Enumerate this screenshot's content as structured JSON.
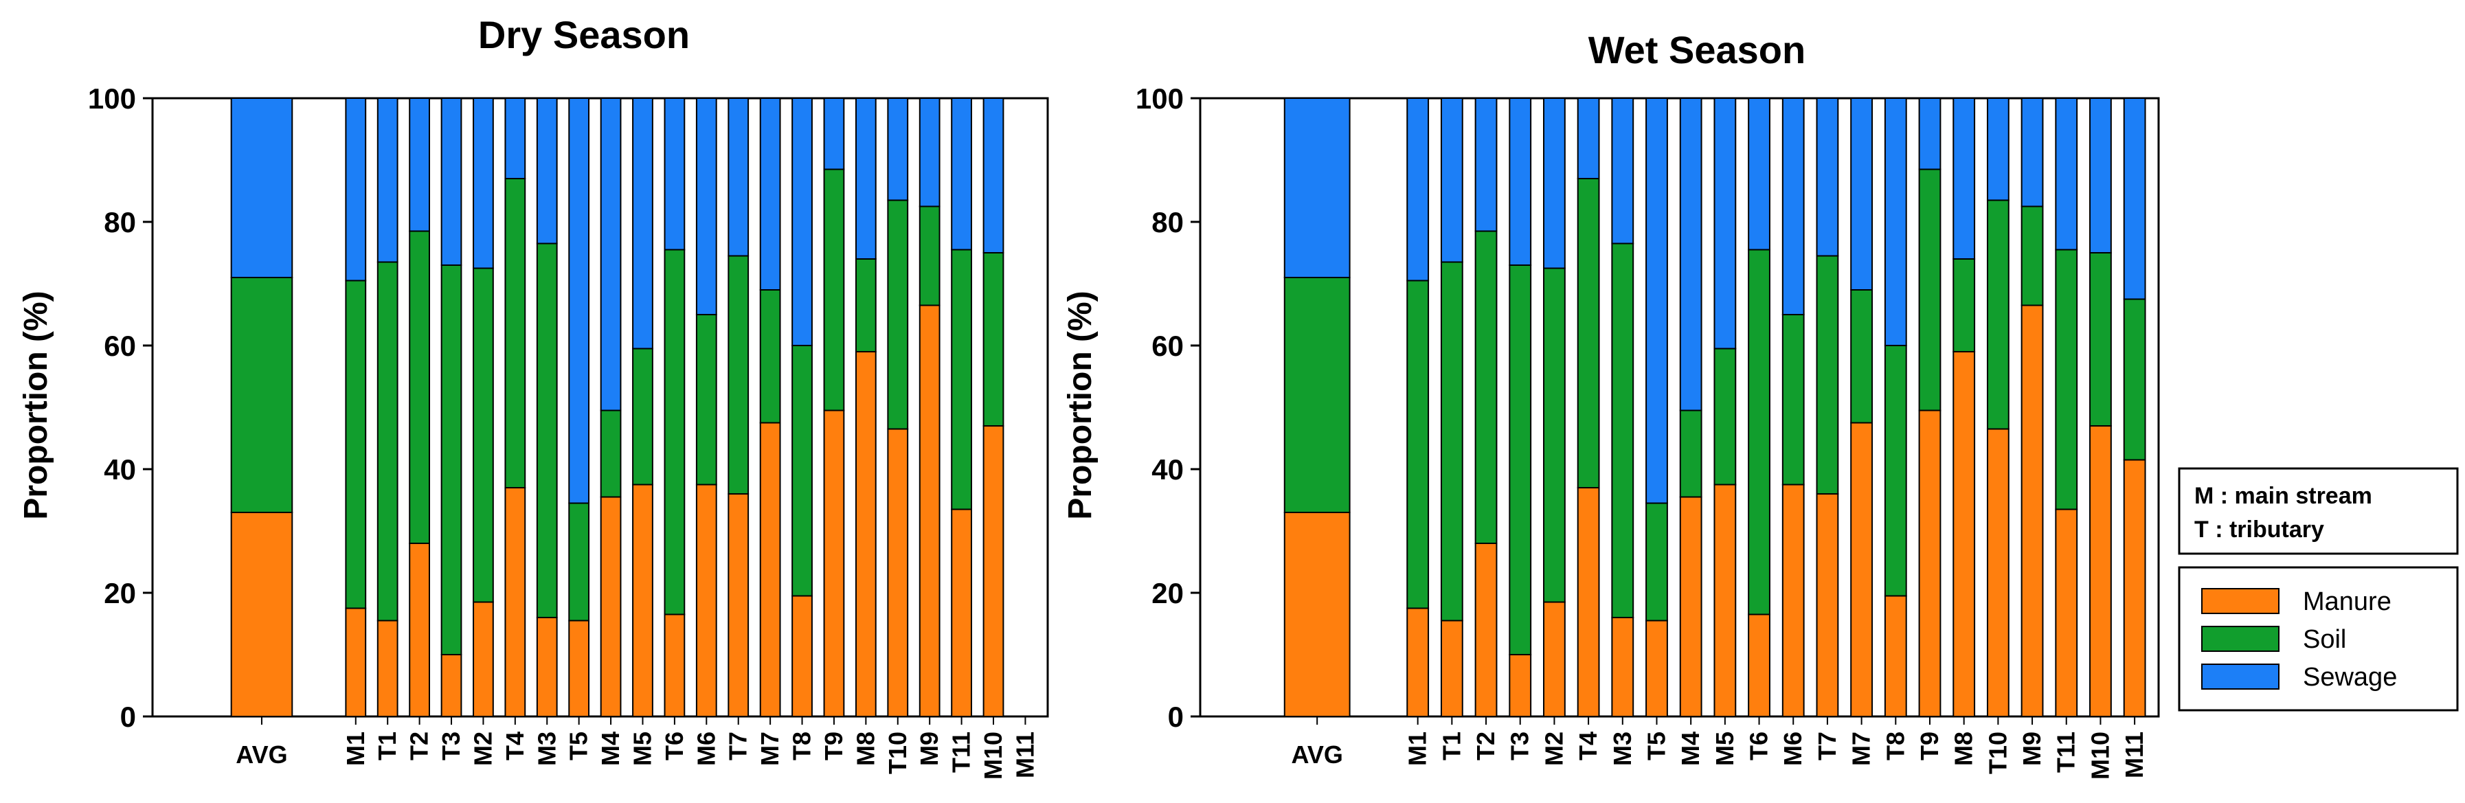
{
  "colors": {
    "manure": "#FF7F0E",
    "soil": "#119E2D",
    "sewage": "#1C7FF7",
    "border": "#000000"
  },
  "legend": {
    "note_lines": [
      "M : main stream",
      "T : tributary"
    ],
    "entries": [
      {
        "label": "Manure",
        "color": "#FF7F0E"
      },
      {
        "label": "Soil",
        "color": "#119E2D"
      },
      {
        "label": "Sewage",
        "color": "#1C7FF7"
      }
    ]
  },
  "chart_data": [
    {
      "type": "bar",
      "stacked": true,
      "title": "Dry Season",
      "ylabel": "Proportion (%)",
      "xlabel": "",
      "ylim": [
        0,
        100
      ],
      "yticks": [
        0,
        20,
        40,
        60,
        80,
        100
      ],
      "categories": [
        "AVG",
        "M1",
        "T1",
        "T2",
        "T3",
        "M2",
        "T4",
        "M3",
        "T5",
        "M4",
        "M5",
        "T6",
        "M6",
        "T7",
        "M7",
        "T8",
        "T9",
        "M8",
        "T10",
        "M9",
        "T11",
        "M10",
        "M11"
      ],
      "series": [
        {
          "name": "Manure",
          "values": [
            33,
            17.5,
            15.5,
            28,
            10,
            18.5,
            37,
            16,
            15.5,
            35.5,
            37.5,
            16.5,
            37.5,
            36,
            47.5,
            19.5,
            49.5,
            59,
            46.5,
            66.5,
            33.5,
            47,
            null
          ]
        },
        {
          "name": "Soil",
          "values": [
            38,
            53,
            58,
            50.5,
            63,
            54,
            50,
            60.5,
            19,
            14,
            22,
            59,
            27.5,
            38.5,
            21.5,
            40.5,
            39,
            15,
            37,
            16,
            42,
            28,
            null
          ]
        },
        {
          "name": "Sewage",
          "values": [
            29,
            29.5,
            26.5,
            21.5,
            27,
            27.5,
            13,
            23.5,
            65.5,
            50.5,
            40.5,
            24.5,
            35,
            25.5,
            31,
            40,
            11.5,
            26,
            16.5,
            17.5,
            24.5,
            25,
            null
          ]
        }
      ]
    },
    {
      "type": "bar",
      "stacked": true,
      "title": "Wet Season",
      "ylabel": "Proportion (%)",
      "xlabel": "",
      "ylim": [
        0,
        100
      ],
      "yticks": [
        0,
        20,
        40,
        60,
        80,
        100
      ],
      "categories": [
        "AVG",
        "M1",
        "T1",
        "T2",
        "T3",
        "M2",
        "T4",
        "M3",
        "T5",
        "M4",
        "M5",
        "T6",
        "M6",
        "T7",
        "M7",
        "T8",
        "T9",
        "M8",
        "T10",
        "M9",
        "T11",
        "M10",
        "M11"
      ],
      "series": [
        {
          "name": "Manure",
          "values": [
            33,
            17.5,
            15.5,
            28,
            10,
            18.5,
            37,
            16,
            15.5,
            35.5,
            37.5,
            16.5,
            37.5,
            36,
            47.5,
            19.5,
            49.5,
            59,
            46.5,
            66.5,
            33.5,
            47,
            41.5
          ]
        },
        {
          "name": "Soil",
          "values": [
            38,
            53,
            58,
            50.5,
            63,
            54,
            50,
            60.5,
            19,
            14,
            22,
            59,
            27.5,
            38.5,
            21.5,
            40.5,
            39,
            15,
            37,
            16,
            42,
            28,
            26
          ]
        },
        {
          "name": "Sewage",
          "values": [
            29,
            29.5,
            26.5,
            21.5,
            27,
            27.5,
            13,
            23.5,
            65.5,
            50.5,
            40.5,
            24.5,
            35,
            25.5,
            31,
            40,
            11.5,
            26,
            16.5,
            17.5,
            24.5,
            25,
            32.5
          ]
        }
      ]
    }
  ]
}
